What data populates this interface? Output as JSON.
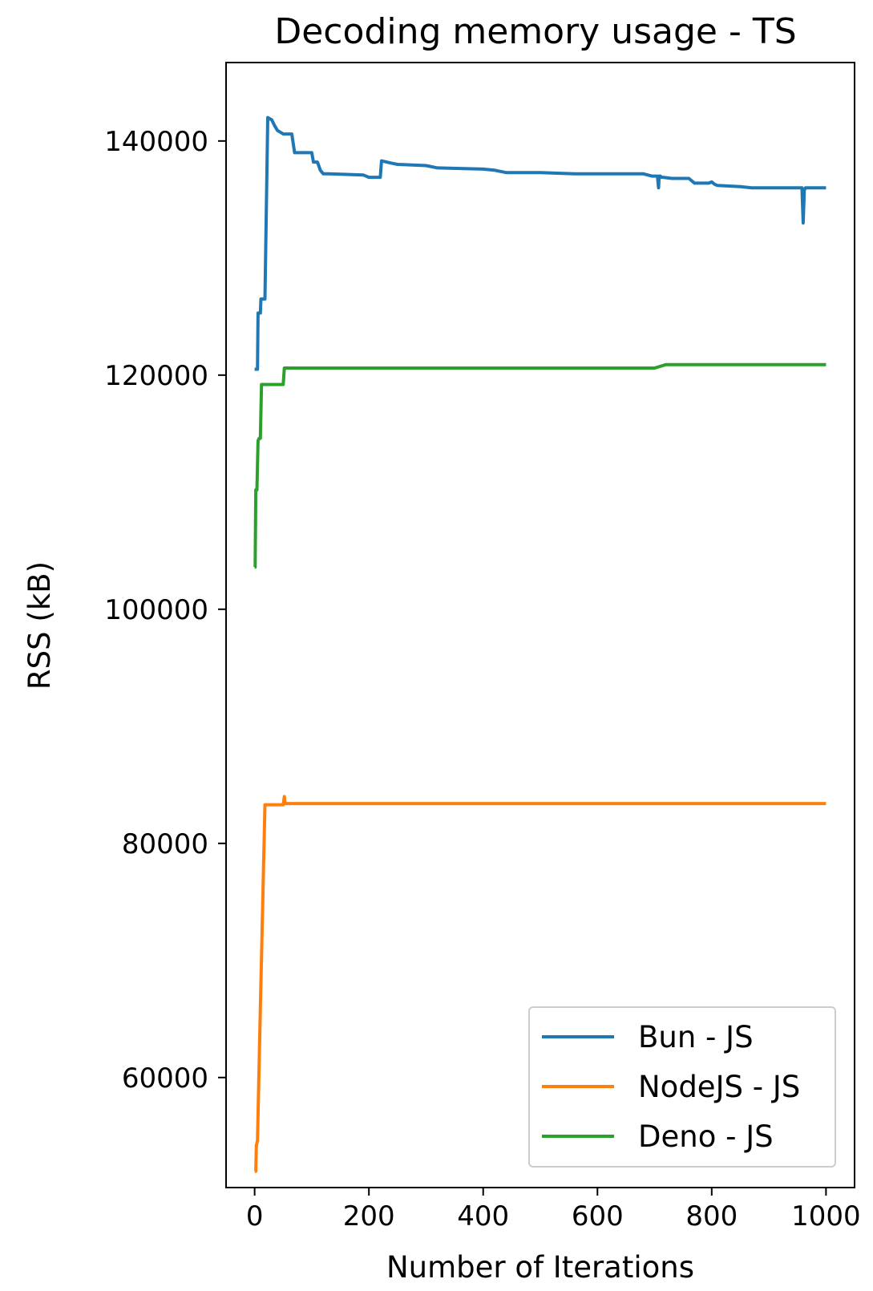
{
  "chart_data": {
    "type": "line",
    "title": "Decoding memory usage - TS",
    "xlabel": "Number of Iterations",
    "ylabel": "RSS (kB)",
    "xlim": [
      -50,
      1050
    ],
    "ylim": [
      50600,
      146700
    ],
    "xticks": [
      0,
      200,
      400,
      600,
      800,
      1000
    ],
    "yticks": [
      60000,
      80000,
      100000,
      120000,
      140000
    ],
    "grid": false,
    "legend_position": "lower-right",
    "colors": {
      "Bun - JS": "#1f77b4",
      "NodeJS - JS": "#ff7f0e",
      "Deno - JS": "#2ca02c"
    },
    "series": [
      {
        "name": "Bun - JS",
        "x": [
          0,
          5,
          6,
          10,
          11,
          18,
          23,
          30,
          35,
          40,
          50,
          65,
          70,
          100,
          103,
          110,
          115,
          120,
          130,
          190,
          200,
          215,
          220,
          222,
          240,
          250,
          300,
          320,
          400,
          420,
          440,
          500,
          560,
          580,
          600,
          680,
          695,
          705,
          707,
          708,
          710,
          712,
          715,
          730,
          760,
          770,
          795,
          800,
          805,
          810,
          850,
          870,
          900,
          958,
          960,
          962,
          964,
          967,
          1000
        ],
        "y": [
          120500,
          120500,
          125300,
          125300,
          126500,
          126500,
          142000,
          141800,
          141300,
          140900,
          140600,
          140600,
          139000,
          139000,
          138200,
          138200,
          137500,
          137200,
          137200,
          137100,
          136900,
          136900,
          136900,
          138300,
          138100,
          138000,
          137900,
          137700,
          137600,
          137500,
          137300,
          137300,
          137200,
          137200,
          137200,
          137200,
          137000,
          137000,
          136000,
          137000,
          137000,
          136900,
          136900,
          136800,
          136800,
          136400,
          136400,
          136500,
          136300,
          136200,
          136100,
          136000,
          136000,
          136000,
          133000,
          135800,
          136000,
          136000,
          136000
        ]
      },
      {
        "name": "NodeJS - JS",
        "x": [
          0,
          2,
          3,
          5,
          10,
          18,
          20,
          50,
          52,
          53,
          54,
          60,
          1000
        ],
        "y": [
          52000,
          52000,
          54200,
          54600,
          66000,
          83300,
          83300,
          83300,
          84000,
          83500,
          83400,
          83400,
          83400
        ]
      },
      {
        "name": "Deno - JS",
        "x": [
          0,
          1,
          2,
          4,
          6,
          8,
          10,
          12,
          15,
          50,
          52,
          60,
          700,
          720,
          1000
        ],
        "y": [
          103600,
          103600,
          110200,
          110200,
          114400,
          114600,
          114600,
          119200,
          119200,
          119200,
          120600,
          120600,
          120600,
          120900,
          120900
        ]
      }
    ]
  }
}
